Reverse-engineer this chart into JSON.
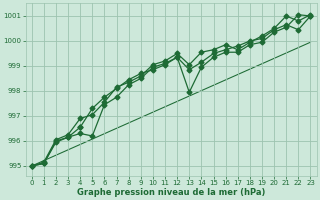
{
  "title": "Graphe pression niveau de la mer (hPa)",
  "xlim": [
    -0.5,
    23.5
  ],
  "ylim": [
    994.6,
    1001.5
  ],
  "yticks": [
    995,
    996,
    997,
    998,
    999,
    1000,
    1001
  ],
  "xticks": [
    0,
    1,
    2,
    3,
    4,
    5,
    6,
    7,
    8,
    9,
    10,
    11,
    12,
    13,
    14,
    15,
    16,
    17,
    18,
    19,
    20,
    21,
    22,
    23
  ],
  "background_color": "#cde8da",
  "grid_color": "#9dc4b0",
  "line_color": "#1e6b35",
  "series1_x": [
    0,
    1,
    2,
    3,
    4,
    4,
    5,
    6,
    7,
    8,
    9,
    10,
    11,
    12,
    13,
    14,
    15,
    16,
    17,
    18,
    19,
    20,
    21,
    22,
    23
  ],
  "series1_y": [
    995.0,
    995.1,
    996.0,
    996.15,
    996.55,
    996.55,
    997.3,
    997.75,
    998.1,
    998.45,
    998.7,
    998.85,
    999.05,
    999.35,
    998.85,
    999.15,
    999.5,
    999.65,
    999.8,
    1000.0,
    1000.1,
    1000.45,
    1000.65,
    1000.45,
    1001.0
  ],
  "series2_x": [
    0,
    1,
    2,
    3,
    4,
    5,
    6,
    7,
    8,
    9,
    10,
    11,
    12,
    13,
    14,
    15,
    16,
    17,
    18,
    19,
    20,
    21,
    22,
    23
  ],
  "series2_y": [
    995.0,
    995.15,
    996.05,
    996.25,
    996.9,
    997.05,
    997.55,
    998.15,
    998.35,
    998.6,
    999.05,
    999.2,
    999.5,
    999.05,
    999.55,
    999.65,
    999.85,
    999.65,
    999.95,
    1000.2,
    1000.5,
    1001.0,
    1000.8,
    1001.05
  ],
  "series3_x": [
    0,
    1,
    2,
    3,
    4,
    5,
    6,
    7,
    8,
    9,
    10,
    11,
    12,
    13,
    14,
    15,
    16,
    17,
    18,
    19,
    20,
    21,
    22,
    23
  ],
  "series3_y": [
    995.0,
    995.1,
    995.95,
    996.15,
    996.3,
    996.2,
    997.45,
    997.75,
    998.25,
    998.5,
    998.95,
    999.1,
    999.35,
    997.95,
    998.95,
    999.35,
    999.55,
    999.55,
    999.85,
    999.95,
    1000.35,
    1000.55,
    1001.05,
    1001.0
  ],
  "trend_x": [
    0,
    23
  ],
  "trend_y": [
    995.0,
    999.95
  ],
  "markersize": 2.5,
  "linewidth": 0.9,
  "tick_fontsize": 5.0,
  "label_fontsize": 6.0
}
